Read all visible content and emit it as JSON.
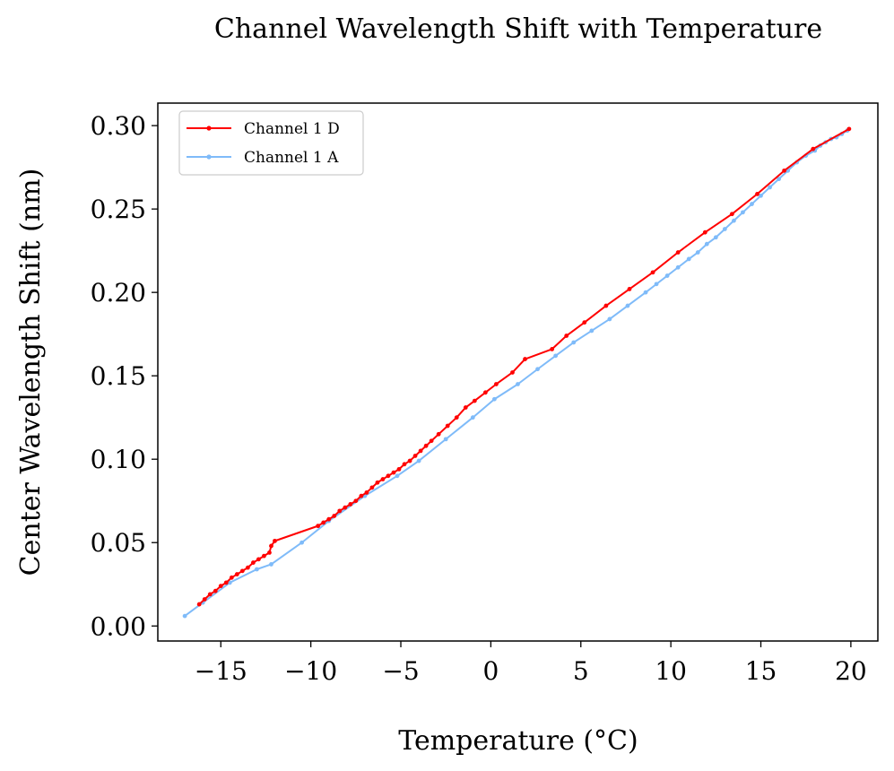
{
  "chart_data": {
    "type": "line",
    "title": "Channel Wavelength Shift with Temperature",
    "xlabel": "Temperature (°C)",
    "ylabel": "Center Wavelength Shift (nm)",
    "xlim": [
      -18.5,
      21.5
    ],
    "ylim": [
      -0.009,
      0.3135
    ],
    "xticks": [
      -15,
      -10,
      -5,
      0,
      5,
      10,
      15,
      20
    ],
    "xtick_labels": [
      "−15",
      "−10",
      "−5",
      "0",
      "5",
      "10",
      "15",
      "20"
    ],
    "yticks": [
      0.0,
      0.05,
      0.1,
      0.15,
      0.2,
      0.25,
      0.3
    ],
    "ytick_labels": [
      "0.00",
      "0.05",
      "0.10",
      "0.15",
      "0.20",
      "0.25",
      "0.30"
    ],
    "grid": false,
    "legend": {
      "position": "top-left"
    },
    "series": [
      {
        "name": "Channel 1 D",
        "color": "#ff0000",
        "x": [
          -16.2,
          -15.9,
          -15.6,
          -15.3,
          -15.0,
          -14.7,
          -14.4,
          -14.1,
          -13.8,
          -13.5,
          -13.2,
          -12.9,
          -12.6,
          -12.3,
          -12.2,
          -12.0,
          -9.6,
          -9.3,
          -9.0,
          -8.7,
          -8.4,
          -8.1,
          -7.8,
          -7.5,
          -7.2,
          -6.9,
          -6.6,
          -6.3,
          -6.0,
          -5.7,
          -5.4,
          -5.1,
          -4.8,
          -4.5,
          -4.2,
          -3.9,
          -3.6,
          -3.3,
          -2.9,
          -2.4,
          -1.9,
          -1.4,
          -0.9,
          -0.3,
          0.3,
          1.2,
          1.9,
          3.4,
          4.2,
          5.2,
          6.4,
          7.7,
          9.0,
          10.4,
          11.9,
          13.4,
          14.8,
          16.3,
          17.9,
          19.9
        ],
        "y": [
          0.013,
          0.016,
          0.019,
          0.021,
          0.024,
          0.026,
          0.029,
          0.031,
          0.033,
          0.035,
          0.038,
          0.04,
          0.042,
          0.044,
          0.048,
          0.051,
          0.06,
          0.062,
          0.064,
          0.066,
          0.069,
          0.071,
          0.073,
          0.075,
          0.078,
          0.08,
          0.083,
          0.086,
          0.088,
          0.09,
          0.092,
          0.094,
          0.097,
          0.099,
          0.102,
          0.105,
          0.108,
          0.111,
          0.115,
          0.12,
          0.125,
          0.131,
          0.135,
          0.14,
          0.145,
          0.152,
          0.16,
          0.166,
          0.174,
          0.182,
          0.192,
          0.202,
          0.212,
          0.224,
          0.236,
          0.247,
          0.259,
          0.273,
          0.286,
          0.298
        ]
      },
      {
        "name": "Channel 1 A",
        "color": "#7fbbf9",
        "x": [
          -17.0,
          -16.0,
          -14.5,
          -13.0,
          -12.2,
          -10.5,
          -9.0,
          -7.0,
          -5.2,
          -4.0,
          -2.5,
          -1.0,
          0.2,
          1.5,
          2.6,
          3.6,
          4.6,
          5.6,
          6.6,
          7.6,
          8.6,
          9.2,
          9.8,
          10.4,
          11.0,
          11.5,
          12.0,
          12.5,
          13.0,
          13.5,
          14.0,
          14.5,
          15.0,
          15.5,
          16.0,
          16.5,
          17.0,
          17.5,
          18.0,
          18.3,
          18.6,
          18.9,
          19.2,
          19.5,
          19.8
        ],
        "y": [
          0.006,
          0.014,
          0.026,
          0.034,
          0.037,
          0.05,
          0.063,
          0.078,
          0.09,
          0.099,
          0.112,
          0.125,
          0.136,
          0.145,
          0.154,
          0.162,
          0.17,
          0.177,
          0.184,
          0.192,
          0.2,
          0.205,
          0.21,
          0.215,
          0.22,
          0.224,
          0.229,
          0.233,
          0.238,
          0.243,
          0.248,
          0.253,
          0.258,
          0.263,
          0.268,
          0.273,
          0.278,
          0.282,
          0.285,
          0.288,
          0.29,
          0.292,
          0.293,
          0.295,
          0.297
        ]
      }
    ]
  }
}
